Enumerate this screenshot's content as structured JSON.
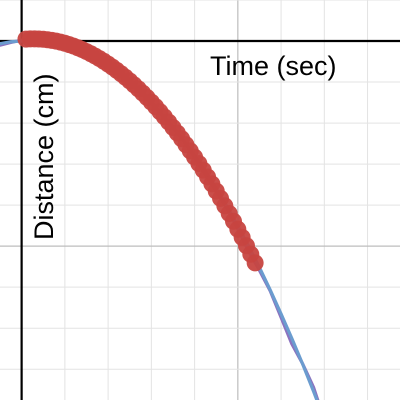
{
  "chart_data": {
    "type": "scatter",
    "xlabel": "Time (sec)",
    "ylabel": "Distance (cm)",
    "xlim": [
      -0.5,
      8.75
    ],
    "ylim": [
      -8.75,
      1.0
    ],
    "grid": true,
    "series": [
      {
        "kind": "points",
        "color": "#c74440",
        "x": [
          0.1,
          0.2,
          0.3,
          0.4,
          0.5,
          0.6,
          0.7,
          0.8,
          0.9,
          1.0,
          1.1,
          1.2,
          1.3,
          1.4,
          1.5,
          1.6,
          1.7,
          1.8,
          1.9,
          2.0,
          2.1,
          2.2,
          2.3,
          2.4,
          2.5,
          2.6,
          2.7,
          2.8,
          2.9,
          3.0,
          3.1,
          3.2,
          3.3,
          3.4,
          3.5,
          3.6,
          3.7,
          3.8,
          3.9,
          4.0,
          4.1,
          4.2,
          4.3,
          4.4,
          4.5,
          4.6,
          4.7,
          4.8,
          4.9,
          5.0,
          5.1,
          5.2,
          5.3,
          5.4
        ],
        "y": [
          0.046,
          0.052,
          0.053,
          0.05,
          0.043,
          0.032,
          0.016,
          -0.003,
          -0.027,
          -0.055,
          -0.087,
          -0.123,
          -0.163,
          -0.208,
          -0.257,
          -0.31,
          -0.367,
          -0.428,
          -0.493,
          -0.563,
          -0.637,
          -0.715,
          -0.797,
          -0.883,
          -0.973,
          -1.068,
          -1.167,
          -1.27,
          -1.377,
          -1.488,
          -1.603,
          -1.723,
          -1.847,
          -1.975,
          -2.107,
          -2.243,
          -2.383,
          -2.528,
          -2.677,
          -2.83,
          -2.987,
          -3.148,
          -3.313,
          -3.483,
          -3.657,
          -3.835,
          -4.017,
          -4.203,
          -4.393,
          -4.588,
          -4.787,
          -4.99,
          -5.197,
          -5.408
        ]
      },
      {
        "kind": "curve",
        "color": "#8b72bf",
        "x": [
          -0.5,
          -0.25,
          0.0,
          0.25,
          0.5,
          0.75,
          1.0,
          1.25,
          1.5,
          1.75,
          2.0,
          2.25,
          2.5,
          2.75,
          3.0,
          3.25,
          3.5,
          3.75,
          4.0,
          4.25,
          4.5,
          4.75,
          5.0,
          5.25,
          5.5,
          5.75,
          6.0,
          6.25,
          6.5,
          6.75,
          7.0
        ],
        "y": [
          -0.101,
          -0.034,
          0.02,
          0.053,
          0.041,
          0.013,
          -0.052,
          -0.148,
          -0.263,
          -0.392,
          -0.562,
          -0.761,
          -0.971,
          -1.205,
          -1.488,
          -1.811,
          -2.107,
          -2.442,
          -2.83,
          -3.26,
          -3.657,
          -4.084,
          -4.588,
          -5.124,
          -5.591,
          -6.094,
          -6.736,
          -7.385,
          -7.869,
          -8.439,
          -9.241
        ]
      },
      {
        "kind": "curve",
        "color": "#6b9ccf",
        "x": [
          -0.5,
          -0.25,
          0.0,
          0.25,
          0.5,
          0.75,
          1.0,
          1.25,
          1.5,
          1.75,
          2.0,
          2.25,
          2.5,
          2.75,
          3.0,
          3.25,
          3.5,
          3.75,
          4.0,
          4.25,
          4.5,
          4.75,
          5.0,
          5.25,
          5.5,
          5.75,
          6.0,
          6.25,
          6.5,
          6.75,
          7.0
        ],
        "y": [
          -0.066,
          -0.018,
          0.0,
          -0.01,
          -0.035,
          -0.09,
          -0.16,
          -0.255,
          -0.364,
          -0.496,
          -0.655,
          -0.828,
          -1.032,
          -1.26,
          -1.519,
          -1.791,
          -2.097,
          -2.429,
          -2.793,
          -3.176,
          -3.591,
          -4.035,
          -4.51,
          -4.999,
          -5.52,
          -6.071,
          -6.653,
          -7.251,
          -7.878,
          -8.538,
          -9.23
        ]
      }
    ]
  }
}
